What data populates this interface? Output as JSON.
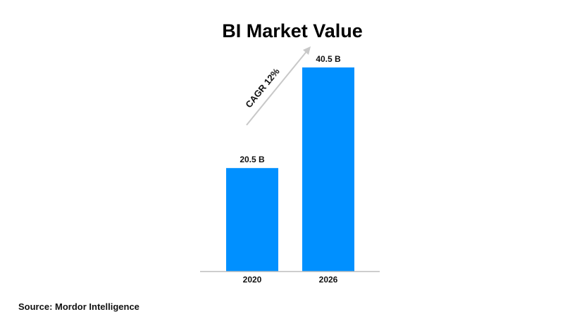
{
  "chart_data": {
    "type": "bar",
    "title": "BI Market Value",
    "categories": [
      "2020",
      "2026"
    ],
    "values": [
      20.5,
      40.5
    ],
    "data_labels": [
      "20.5 B",
      "40.5 B"
    ],
    "xlabel": "",
    "ylabel": "",
    "ylim": [
      0,
      40.5
    ],
    "grid": false,
    "annotation": "CAGR 12%",
    "source": "Source: Mordor Intelligence",
    "bar_color": "#0090ff",
    "arrow_color": "#c8c8c8",
    "axis_color": "#bdbdbd"
  }
}
